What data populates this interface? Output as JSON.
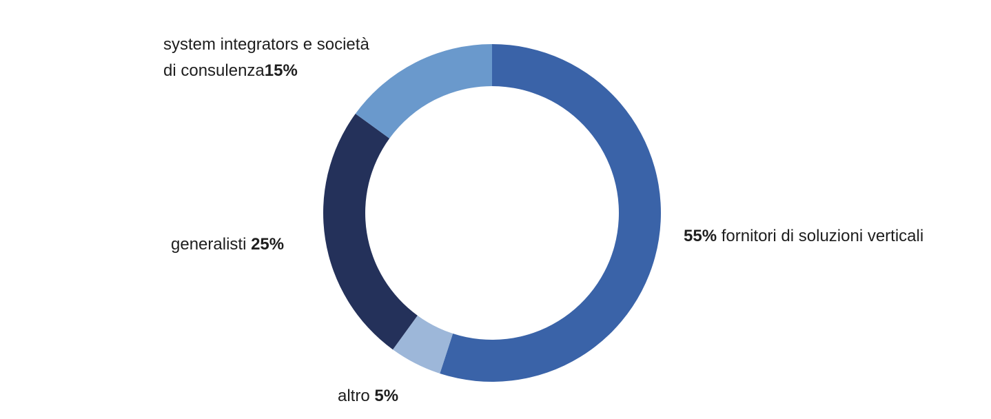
{
  "chart_data": {
    "type": "pie",
    "title": "",
    "donut": true,
    "slices": [
      {
        "name": "fornitori di soluzioni verticali",
        "value": 55,
        "pct_label": "55%",
        "color": "#3a63a8"
      },
      {
        "name": "altro",
        "value": 5,
        "pct_label": "5%",
        "color": "#9db7d9"
      },
      {
        "name": "generalisti",
        "value": 25,
        "pct_label": "25%",
        "color": "#24315a"
      },
      {
        "name_line1": "system integrators e società",
        "name_line2": "di consulenza",
        "value": 15,
        "pct_label": "15%",
        "color": "#6a99cc"
      }
    ]
  }
}
